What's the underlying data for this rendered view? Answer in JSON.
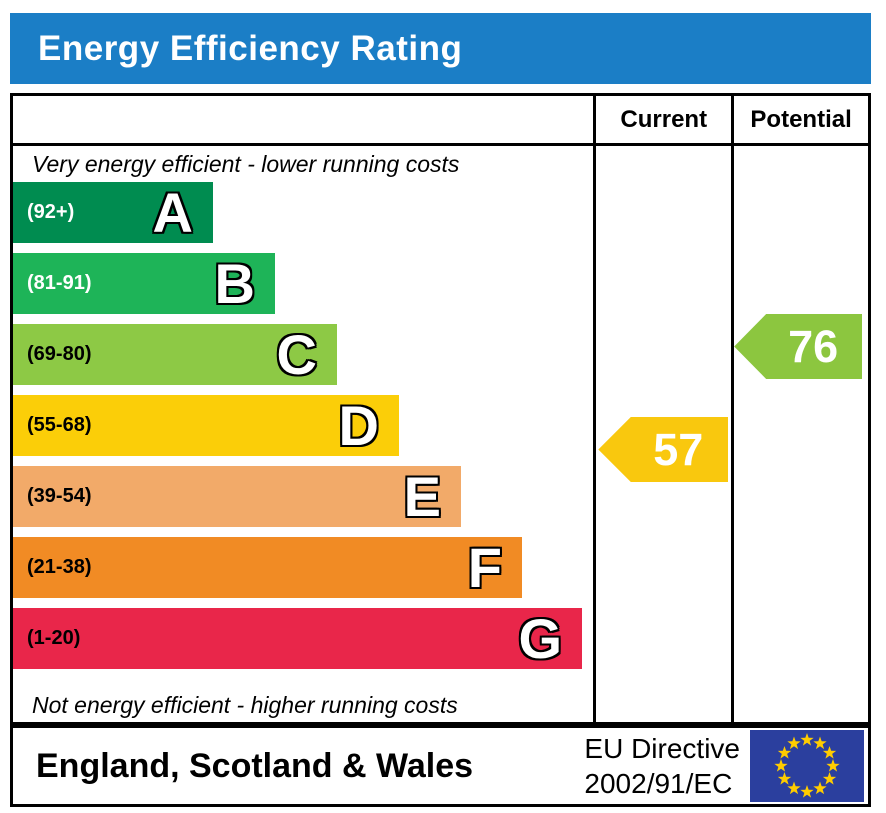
{
  "title": "Energy Efficiency Rating",
  "table": {
    "current_header": "Current",
    "potential_header": "Potential"
  },
  "captions": {
    "top": "Very energy efficient - lower running costs",
    "bottom": "Not energy efficient - higher running costs"
  },
  "bands": [
    {
      "letter": "A",
      "range": "(92+)",
      "color": "#008c50",
      "range_color": "#ffffff"
    },
    {
      "letter": "B",
      "range": "(81-91)",
      "color": "#1eb458",
      "range_color": "#ffffff"
    },
    {
      "letter": "C",
      "range": "(69-80)",
      "color": "#8dc945",
      "range_color": "#000000"
    },
    {
      "letter": "D",
      "range": "(55-68)",
      "color": "#fbce08",
      "range_color": "#000000"
    },
    {
      "letter": "E",
      "range": "(39-54)",
      "color": "#f2aa69",
      "range_color": "#000000"
    },
    {
      "letter": "F",
      "range": "(21-38)",
      "color": "#f18b24",
      "range_color": "#000000"
    },
    {
      "letter": "G",
      "range": "(1-20)",
      "color": "#e9264a",
      "range_color": "#000000"
    }
  ],
  "ratings": {
    "current": {
      "value": "57",
      "band": "D",
      "color": "#f9c80e"
    },
    "potential": {
      "value": "76",
      "band": "C",
      "color": "#8cc63f"
    }
  },
  "footer": {
    "region": "England, Scotland & Wales",
    "directive_line1": "EU Directive",
    "directive_line2": "2002/91/EC",
    "flag_colors": {
      "field": "#2b3f9e",
      "stars": "#ffcc00"
    }
  },
  "theme": {
    "header_bg": "#1b7ec6",
    "header_text": "#ffffff",
    "border": "#000000"
  },
  "chart_data": {
    "type": "bar",
    "title": "Energy Efficiency Rating",
    "categories": [
      "A",
      "B",
      "C",
      "D",
      "E",
      "F",
      "G"
    ],
    "band_ranges": [
      "92+",
      "81-91",
      "69-80",
      "55-68",
      "39-54",
      "21-38",
      "1-20"
    ],
    "band_colors": [
      "#008c50",
      "#1eb458",
      "#8dc945",
      "#fbce08",
      "#f2aa69",
      "#f18b24",
      "#e9264a"
    ],
    "value_range": [
      1,
      100
    ],
    "markers": [
      {
        "name": "Current",
        "value": 57,
        "band": "D",
        "color": "#f9c80e"
      },
      {
        "name": "Potential",
        "value": 76,
        "band": "C",
        "color": "#8cc63f"
      }
    ],
    "annotations": [
      "Very energy efficient - lower running costs",
      "Not energy efficient - higher running costs"
    ],
    "footer_region": "England, Scotland & Wales",
    "footer_directive": "EU Directive 2002/91/EC",
    "legend_position": "none",
    "grid": false
  }
}
